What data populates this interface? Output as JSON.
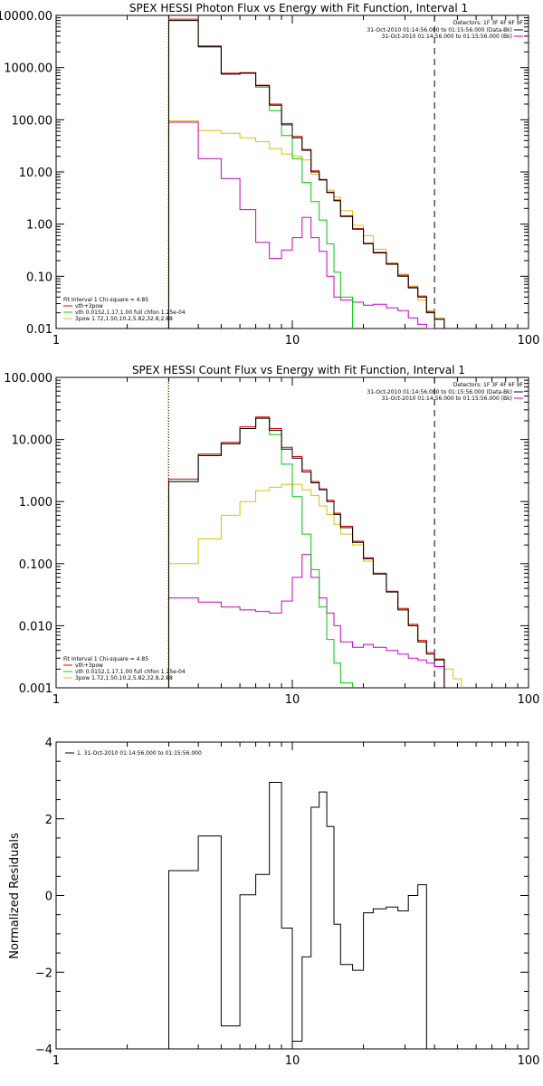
{
  "colors": {
    "data": "#000000",
    "total": "#e00000",
    "thermal": "#00cc00",
    "power": "#e0c000",
    "background": "#cc00cc",
    "fit_start": "#e0a000"
  },
  "chart_data": [
    {
      "type": "line",
      "step": true,
      "title": "SPEX HESSI Photon Flux vs Energy with Fit Function, Interval 1",
      "xscale": "log",
      "yscale": "log",
      "xlim": [
        1,
        100
      ],
      "ylim": [
        0.01,
        10000
      ],
      "xticks": [
        1,
        10,
        100
      ],
      "xtick_labels": [
        "1",
        "10",
        "100"
      ],
      "yticks": [
        0.01,
        0.1,
        1,
        10,
        100,
        1000,
        10000
      ],
      "ytick_labels": [
        "0.01",
        "0.10",
        "1.00",
        "10.00",
        "100.00",
        "1000.00",
        "10000.00"
      ],
      "edges": [
        3,
        4,
        5,
        6,
        7,
        8,
        9,
        10,
        11,
        12,
        13,
        14,
        15,
        16,
        18,
        20,
        22,
        25,
        28,
        31,
        34,
        37,
        40,
        44
      ],
      "dotted_line_x": 3,
      "dashed_line_x": 40,
      "legend_header": "Detectors: 1F 3F 4F 6F 9F",
      "legend_items": [
        {
          "color": "#000000",
          "text": "31-Oct-2010 01:14:56.000 to 01:15:56.000 (Data-Bk)"
        },
        {
          "color": "#cc00cc",
          "text": "31-Oct-2010 01:14:56.000 to 01:15:56.000 (Bk)"
        }
      ],
      "fit_header": "Fit Interval 1    Chi-square = 4.85",
      "fit_items": [
        {
          "color": "#e00000",
          "text": "vth+3pow"
        },
        {
          "color": "#00cc00",
          "text": "vth 0.0152,1.17,1.00  full chfon 1.25e-04"
        },
        {
          "color": "#e0c000",
          "text": "3pow 1.72,1.50,10.2,5.82,32.8,2.88"
        }
      ],
      "series": [
        {
          "name": "Data-Bk",
          "color": "#000000",
          "values": [
            8000,
            2500,
            750,
            780,
            450,
            190,
            80,
            45,
            26,
            10,
            7,
            4,
            2.8,
            1.4,
            0.8,
            0.42,
            0.28,
            0.17,
            0.1,
            0.06,
            0.04,
            0.02,
            0.015
          ]
        },
        {
          "name": "vth+3pow",
          "color": "#e00000",
          "values": [
            8500,
            2600,
            780,
            800,
            460,
            200,
            85,
            48,
            27,
            10.5,
            7.2,
            4.1,
            2.9,
            1.45,
            0.82,
            0.43,
            0.29,
            0.175,
            0.105,
            0.062,
            0.042,
            0.021,
            0.015
          ]
        },
        {
          "name": "vth",
          "color": "#00cc00",
          "values": [
            8000,
            2500,
            750,
            780,
            420,
            150,
            50,
            18,
            6.3,
            2.7,
            1.2,
            0.42,
            0.12,
            0.04
          ]
        },
        {
          "name": "3pow",
          "color": "#e0c000",
          "values": [
            95,
            62,
            55,
            45,
            38,
            28,
            22,
            20,
            17,
            9,
            7,
            4.5,
            3.3,
            1.8,
            0.95,
            0.6,
            0.33,
            0.18,
            0.11,
            0.065,
            0.035,
            0.022,
            0.016
          ]
        },
        {
          "name": "Bk",
          "color": "#cc00cc",
          "values": [
            90,
            18,
            7.5,
            1.9,
            0.45,
            0.22,
            0.32,
            0.55,
            1.35,
            0.55,
            0.3,
            0.1,
            0.04,
            0.035,
            0.032,
            0.028,
            0.029,
            0.025,
            0.022,
            0.016,
            0.012,
            0.01
          ]
        }
      ]
    },
    {
      "type": "line",
      "step": true,
      "title": "SPEX HESSI Count Flux vs Energy with Fit Function, Interval 1",
      "xscale": "log",
      "yscale": "log",
      "xlim": [
        1,
        100
      ],
      "ylim": [
        0.001,
        100
      ],
      "xticks": [
        1,
        10,
        100
      ],
      "xtick_labels": [
        "1",
        "10",
        "100"
      ],
      "yticks": [
        0.001,
        0.01,
        0.1,
        1,
        10,
        100
      ],
      "ytick_labels": [
        "0.001",
        "0.010",
        "0.100",
        "1.000",
        "10.000",
        "100.000"
      ],
      "edges": [
        3,
        4,
        5,
        6,
        7,
        8,
        9,
        10,
        11,
        12,
        13,
        14,
        15,
        16,
        18,
        20,
        22,
        25,
        28,
        31,
        34,
        37,
        40,
        44,
        48,
        52
      ],
      "dotted_line_x": 3,
      "dashed_line_x": 40,
      "legend_header": "Detectors: 1F 3F 4F 6F 9F",
      "legend_items": [
        {
          "color": "#000000",
          "text": "31-Oct-2010 01:14:56.000 to 01:15:56.000 (Data-Bk)"
        },
        {
          "color": "#cc00cc",
          "text": "31-Oct-2010 01:14:56.000 to 01:15:56.000 (Bk)"
        }
      ],
      "fit_header": "Fit Interval 1    Chi-square = 4.85",
      "fit_items": [
        {
          "color": "#e00000",
          "text": "vth+3pow"
        },
        {
          "color": "#00cc00",
          "text": "vth 0.0152,1.17,1.00  full chfon 1.25e-04"
        },
        {
          "color": "#e0c000",
          "text": "3pow 1.72,1.50,10.2,5.82,32.8,2.88"
        }
      ],
      "series": [
        {
          "name": "Data-Bk",
          "color": "#000000",
          "values": [
            2.1,
            5.5,
            8.5,
            15,
            22,
            14,
            7,
            5,
            3,
            2,
            1.55,
            1.0,
            0.62,
            0.38,
            0.22,
            0.12,
            0.068,
            0.035,
            0.018,
            0.01,
            0.0055,
            0.0035,
            0.0028
          ]
        },
        {
          "name": "vth+3pow",
          "color": "#e00000",
          "values": [
            2.3,
            5.8,
            9,
            16,
            23,
            15,
            7.5,
            5.3,
            3.2,
            2.1,
            1.6,
            1.05,
            0.65,
            0.4,
            0.23,
            0.125,
            0.07,
            0.036,
            0.019,
            0.0105,
            0.0058,
            0.0037,
            0.0029
          ]
        },
        {
          "name": "vth",
          "color": "#00cc00",
          "values": [
            2.1,
            5.5,
            8.5,
            15,
            22,
            12,
            4,
            1.2,
            0.3,
            0.08,
            0.02,
            0.006,
            0.0025,
            0.0012
          ]
        },
        {
          "name": "3pow",
          "color": "#e0c000",
          "values": [
            0.1,
            0.25,
            0.6,
            1.0,
            1.5,
            1.7,
            1.9,
            1.9,
            1.55,
            1.25,
            0.85,
            0.62,
            0.43,
            0.3,
            0.2,
            0.11,
            0.068,
            0.035,
            0.018,
            0.01,
            0.0055,
            0.0037,
            0.0029,
            0.002,
            0.0014
          ]
        },
        {
          "name": "Bk",
          "color": "#cc00cc",
          "values": [
            0.028,
            0.024,
            0.02,
            0.018,
            0.017,
            0.016,
            0.025,
            0.06,
            0.14,
            0.06,
            0.028,
            0.016,
            0.01,
            0.0055,
            0.0045,
            0.005,
            0.0045,
            0.004,
            0.0035,
            0.003,
            0.0028,
            0.0025,
            0.0022
          ]
        }
      ]
    },
    {
      "type": "line",
      "step": true,
      "title": "",
      "xscale": "log",
      "yscale": "linear",
      "xlim": [
        1,
        100
      ],
      "ylim": [
        -4,
        4
      ],
      "xticks": [
        1,
        10,
        100
      ],
      "xtick_labels": [
        "1",
        "10",
        "100"
      ],
      "yticks": [
        -4,
        -2,
        0,
        2,
        4
      ],
      "ytick_labels": [
        "−4",
        "−2",
        "0",
        "2",
        "4"
      ],
      "ylabel": "Normalized Residuals",
      "legend_items": [
        {
          "color": "#000000",
          "text": "1. 31-Oct-2010 01:14:56.000 to 01:15:56.000"
        }
      ],
      "edges": [
        3,
        4,
        5,
        6,
        7,
        8,
        9,
        10,
        11,
        12,
        13,
        14,
        15,
        16,
        18,
        20,
        22,
        25,
        28,
        31,
        34,
        37,
        40
      ],
      "series": [
        {
          "name": "1. 31-Oct-2010 01:14:56.000 to 01:15:56.000",
          "color": "#000000",
          "values": [
            0.65,
            1.55,
            -3.4,
            0.02,
            0.55,
            2.95,
            -0.85,
            -3.8,
            -1.6,
            2.3,
            2.7,
            1.8,
            -0.75,
            -1.8,
            -1.95,
            -0.45,
            -0.35,
            -0.3,
            -0.4,
            0.0,
            0.28
          ]
        }
      ]
    }
  ]
}
